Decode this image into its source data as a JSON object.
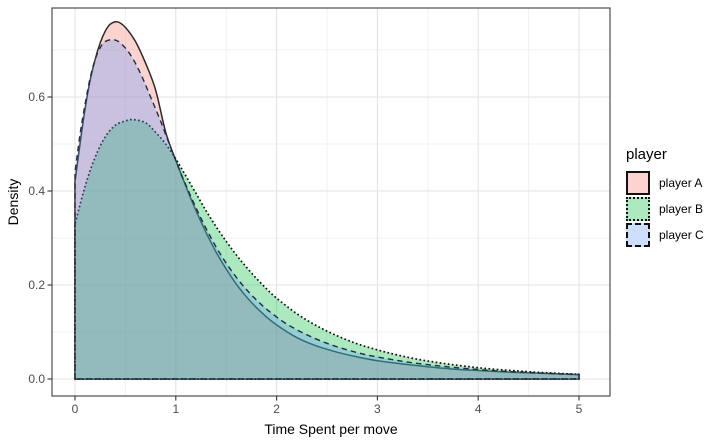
{
  "chart_data": {
    "type": "area",
    "subtype": "overlapping-density-curves",
    "title": "",
    "xlabel": "Time Spent per move",
    "ylabel": "Density",
    "legend_title": "player",
    "legend_position": "right",
    "xlim": [
      -0.23,
      5.31
    ],
    "ylim": [
      -0.036,
      0.789
    ],
    "grid": "on",
    "xticks": [
      {
        "v": 0,
        "label": "0"
      },
      {
        "v": 1,
        "label": "1"
      },
      {
        "v": 2,
        "label": "2"
      },
      {
        "v": 3,
        "label": "3"
      },
      {
        "v": 4,
        "label": "4"
      },
      {
        "v": 5,
        "label": "5"
      }
    ],
    "yticks": [
      {
        "v": 0.0,
        "label": "0.0"
      },
      {
        "v": 0.2,
        "label": "0.2"
      },
      {
        "v": 0.4,
        "label": "0.4"
      },
      {
        "v": 0.6,
        "label": "0.6"
      }
    ],
    "x_minor": [
      0.5,
      1.5,
      2.5,
      3.5,
      4.5
    ],
    "y_minor": [
      0.1,
      0.3,
      0.5,
      0.7
    ],
    "fill_alpha": 0.32,
    "series": [
      {
        "name": "player A",
        "fill": "#F8766D",
        "stroke": "#2a2a2a",
        "linetype": "solid",
        "peak": {
          "x": 0.42,
          "density": 0.76
        },
        "points": [
          [
            0,
            0.42
          ],
          [
            0.05,
            0.5
          ],
          [
            0.1,
            0.575
          ],
          [
            0.15,
            0.635
          ],
          [
            0.2,
            0.68
          ],
          [
            0.25,
            0.715
          ],
          [
            0.3,
            0.74
          ],
          [
            0.35,
            0.755
          ],
          [
            0.42,
            0.76
          ],
          [
            0.5,
            0.748
          ],
          [
            0.6,
            0.718
          ],
          [
            0.7,
            0.672
          ],
          [
            0.8,
            0.615
          ],
          [
            0.9,
            0.525
          ],
          [
            1.0,
            0.465
          ],
          [
            1.1,
            0.41
          ],
          [
            1.2,
            0.358
          ],
          [
            1.3,
            0.312
          ],
          [
            1.4,
            0.27
          ],
          [
            1.5,
            0.234
          ],
          [
            1.6,
            0.202
          ],
          [
            1.7,
            0.175
          ],
          [
            1.8,
            0.152
          ],
          [
            1.9,
            0.132
          ],
          [
            2.0,
            0.115
          ],
          [
            2.2,
            0.088
          ],
          [
            2.4,
            0.07
          ],
          [
            2.6,
            0.057
          ],
          [
            2.8,
            0.047
          ],
          [
            3.0,
            0.039
          ],
          [
            3.25,
            0.032
          ],
          [
            3.5,
            0.026
          ],
          [
            3.75,
            0.021
          ],
          [
            4.0,
            0.018
          ],
          [
            4.25,
            0.015
          ],
          [
            4.5,
            0.013
          ],
          [
            4.75,
            0.011
          ],
          [
            5.0,
            0.009
          ]
        ]
      },
      {
        "name": "player B",
        "fill": "#00BA38",
        "stroke": "#111111",
        "linetype": "dotted",
        "peak": {
          "x": 0.58,
          "density": 0.55
        },
        "points": [
          [
            0,
            0.33
          ],
          [
            0.1,
            0.41
          ],
          [
            0.2,
            0.472
          ],
          [
            0.3,
            0.515
          ],
          [
            0.4,
            0.54
          ],
          [
            0.5,
            0.549
          ],
          [
            0.58,
            0.552
          ],
          [
            0.7,
            0.545
          ],
          [
            0.8,
            0.525
          ],
          [
            0.9,
            0.5
          ],
          [
            1.0,
            0.468
          ],
          [
            1.1,
            0.432
          ],
          [
            1.2,
            0.395
          ],
          [
            1.3,
            0.358
          ],
          [
            1.4,
            0.324
          ],
          [
            1.5,
            0.293
          ],
          [
            1.6,
            0.264
          ],
          [
            1.7,
            0.238
          ],
          [
            1.8,
            0.214
          ],
          [
            1.9,
            0.192
          ],
          [
            2.0,
            0.172
          ],
          [
            2.2,
            0.139
          ],
          [
            2.4,
            0.113
          ],
          [
            2.6,
            0.092
          ],
          [
            2.8,
            0.075
          ],
          [
            3.0,
            0.062
          ],
          [
            3.2,
            0.051
          ],
          [
            3.4,
            0.042
          ],
          [
            3.6,
            0.035
          ],
          [
            3.8,
            0.029
          ],
          [
            4.0,
            0.024
          ],
          [
            4.2,
            0.02
          ],
          [
            4.4,
            0.017
          ],
          [
            4.6,
            0.014
          ],
          [
            4.8,
            0.012
          ],
          [
            5.0,
            0.01
          ]
        ]
      },
      {
        "name": "player C",
        "fill": "#619CFF",
        "stroke": "#232c3d",
        "linetype": "dashed",
        "peak": {
          "x": 0.38,
          "density": 0.72
        },
        "points": [
          [
            0,
            0.44
          ],
          [
            0.05,
            0.52
          ],
          [
            0.1,
            0.585
          ],
          [
            0.15,
            0.64
          ],
          [
            0.2,
            0.68
          ],
          [
            0.25,
            0.705
          ],
          [
            0.3,
            0.718
          ],
          [
            0.38,
            0.722
          ],
          [
            0.45,
            0.715
          ],
          [
            0.55,
            0.69
          ],
          [
            0.65,
            0.65
          ],
          [
            0.75,
            0.6
          ],
          [
            0.85,
            0.548
          ],
          [
            0.95,
            0.492
          ],
          [
            1.05,
            0.438
          ],
          [
            1.15,
            0.388
          ],
          [
            1.25,
            0.342
          ],
          [
            1.35,
            0.3
          ],
          [
            1.45,
            0.263
          ],
          [
            1.55,
            0.231
          ],
          [
            1.65,
            0.203
          ],
          [
            1.75,
            0.179
          ],
          [
            1.85,
            0.158
          ],
          [
            1.95,
            0.14
          ],
          [
            2.1,
            0.117
          ],
          [
            2.3,
            0.094
          ],
          [
            2.5,
            0.076
          ],
          [
            2.7,
            0.062
          ],
          [
            2.9,
            0.051
          ],
          [
            3.1,
            0.043
          ],
          [
            3.3,
            0.036
          ],
          [
            3.6,
            0.028
          ],
          [
            3.9,
            0.022
          ],
          [
            4.2,
            0.017
          ],
          [
            4.5,
            0.014
          ],
          [
            4.8,
            0.011
          ],
          [
            5.0,
            0.01
          ]
        ]
      }
    ],
    "colors": {
      "panel_background": "#ffffff",
      "panel_border": "#4d4d4d",
      "grid_major": "#e3e3e3",
      "grid_minor": "#f0f0f0",
      "tick_mark": "#333333",
      "tick_label": "#4d4d4d",
      "axis_title": "#000000"
    }
  }
}
